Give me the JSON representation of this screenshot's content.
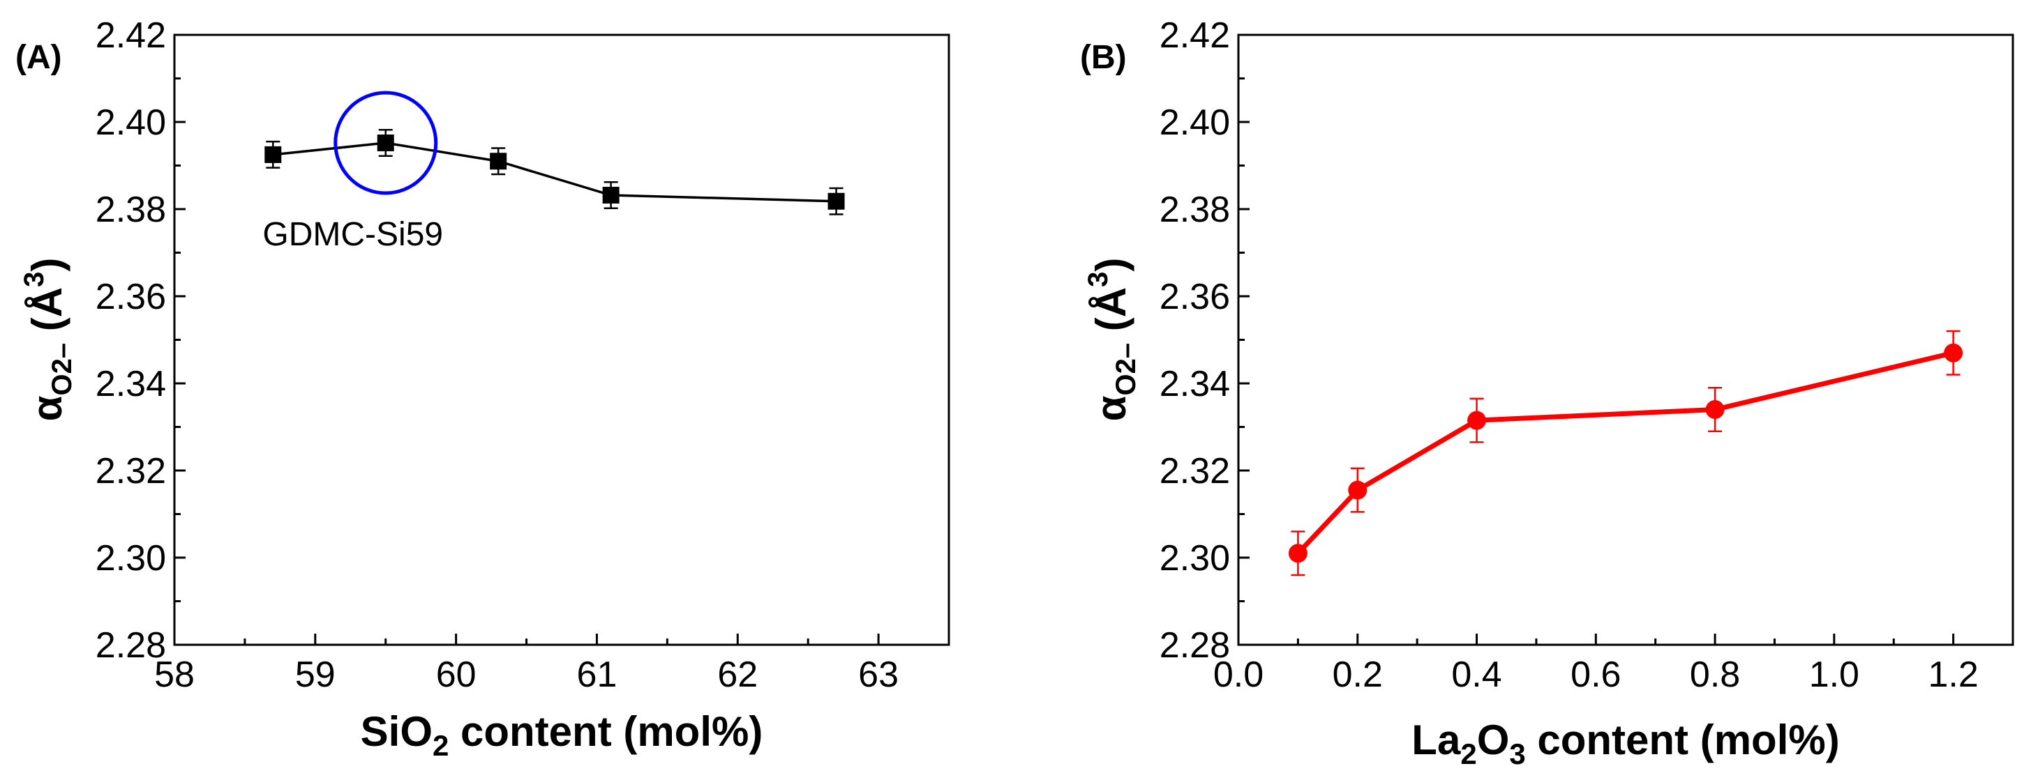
{
  "chart_data": [
    {
      "panel": "(A)",
      "type": "line",
      "marker": "square",
      "color": "#000000",
      "highlight_color": "#0000ff",
      "x": [
        58.7,
        59.5,
        60.3,
        61.1,
        62.7
      ],
      "y": [
        2.3925,
        2.3952,
        2.391,
        2.3832,
        2.3818
      ],
      "yerr": [
        0.003,
        0.003,
        0.003,
        0.003,
        0.003
      ],
      "xlim": [
        58,
        63.5
      ],
      "ylim": [
        2.28,
        2.42
      ],
      "xticks": [
        58,
        59,
        60,
        61,
        62,
        63
      ],
      "xtick_labels": [
        "58",
        "59",
        "60",
        "61",
        "62",
        "63"
      ],
      "yticks": [
        2.28,
        2.3,
        2.32,
        2.34,
        2.36,
        2.38,
        2.4,
        2.42
      ],
      "ytick_labels": [
        "2.28",
        "2.30",
        "2.32",
        "2.34",
        "2.36",
        "2.38",
        "2.40",
        "2.42"
      ],
      "xlabel": {
        "main": "SiO",
        "sub": "2",
        "rest": " content (mol%)"
      },
      "ylabel": {
        "symbol": "α",
        "sub": "O2–",
        "unit_open": " (Å",
        "sup": "3",
        "unit_close": ")"
      },
      "annotation": {
        "text": "GDMC-Si59",
        "x": 59.5,
        "y": 2.3952,
        "circled_point_index": 1
      }
    },
    {
      "panel": "(B)",
      "type": "line",
      "marker": "circle",
      "color": "#ff0000",
      "x": [
        0.1,
        0.2,
        0.4,
        0.8,
        1.2
      ],
      "y": [
        2.301,
        2.3155,
        2.3315,
        2.334,
        2.347
      ],
      "yerr": [
        0.005,
        0.005,
        0.005,
        0.005,
        0.005
      ],
      "xlim": [
        0.0,
        1.3
      ],
      "ylim": [
        2.28,
        2.42
      ],
      "xticks": [
        0.0,
        0.2,
        0.4,
        0.6,
        0.8,
        1.0,
        1.2
      ],
      "xtick_labels": [
        "0.0",
        "0.2",
        "0.4",
        "0.6",
        "0.8",
        "1.0",
        "1.2"
      ],
      "yticks": [
        2.28,
        2.3,
        2.32,
        2.34,
        2.36,
        2.38,
        2.4,
        2.42
      ],
      "ytick_labels": [
        "2.28",
        "2.30",
        "2.32",
        "2.34",
        "2.36",
        "2.38",
        "2.40",
        "2.42"
      ],
      "xlabel": {
        "main": "La",
        "sub": "2",
        "mid": "O",
        "sub2": "3",
        "rest": " content (mol%)"
      },
      "ylabel": {
        "symbol": "α",
        "sub": "O2–",
        "unit_open": " (Å",
        "sup": "3",
        "unit_close": ")"
      }
    }
  ]
}
